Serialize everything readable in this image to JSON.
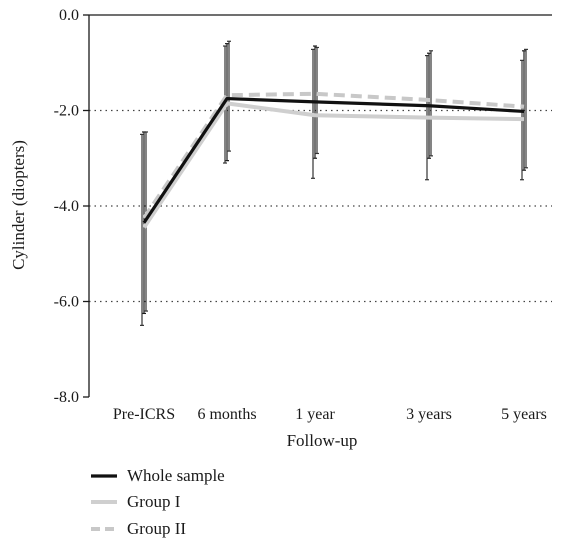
{
  "chart_data": {
    "type": "line",
    "categories": [
      "Pre-ICRS",
      "6 months",
      "1 year",
      "3 years",
      "5 years"
    ],
    "xlabel": "Follow-up",
    "ylabel": "Cylinder (diopters)",
    "ylim": [
      -8.0,
      0.0
    ],
    "yticks": [
      "0.0",
      "-2.0",
      "-4.0",
      "-6.0",
      "-8.0"
    ],
    "ytick_values": [
      0,
      -2,
      -4,
      -6,
      -8
    ],
    "grid": {
      "horizontal_dotted_at": [
        -2,
        -4,
        -6
      ]
    },
    "legend_position": "bottom-left",
    "series": [
      {
        "name": "Whole sample",
        "color": "#111111",
        "style": "solid",
        "values": [
          -4.35,
          -1.75,
          -1.82,
          -1.9,
          -2.02
        ],
        "error": [
          [
            -6.25,
            -2.45
          ],
          [
            -3.05,
            -0.6
          ],
          [
            -3.0,
            -0.65
          ],
          [
            -3.0,
            -0.8
          ],
          [
            -3.25,
            -0.75
          ]
        ]
      },
      {
        "name": "Group I",
        "color": "#cfcfcf",
        "style": "solid",
        "values": [
          -4.45,
          -1.85,
          -2.1,
          -2.15,
          -2.18
        ],
        "error": [
          [
            -6.5,
            -2.5
          ],
          [
            -3.1,
            -0.65
          ],
          [
            -3.42,
            -0.72
          ],
          [
            -3.45,
            -0.85
          ],
          [
            -3.45,
            -0.95
          ]
        ]
      },
      {
        "name": "Group II",
        "color": "#c8c8c8",
        "style": "dashed",
        "values": [
          -4.25,
          -1.68,
          -1.65,
          -1.78,
          -1.92
        ],
        "error": [
          [
            -6.2,
            -2.45
          ],
          [
            -2.85,
            -0.55
          ],
          [
            -2.9,
            -0.68
          ],
          [
            -2.95,
            -0.75
          ],
          [
            -3.2,
            -0.72
          ]
        ]
      }
    ]
  }
}
